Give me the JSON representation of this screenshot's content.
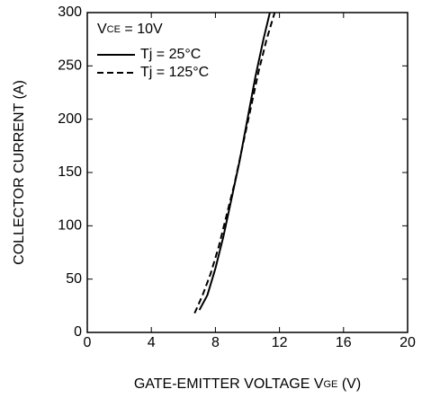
{
  "chart_data": {
    "type": "line",
    "x_label": [
      "GATE-EMITTER VOLTAGE  V",
      "GE",
      " (V)"
    ],
    "y_label": "COLLECTOR CURRENT (A)",
    "annotation": [
      "V",
      "CE",
      " = 10V"
    ],
    "xlim": [
      0,
      20
    ],
    "xticks": [
      0,
      4,
      8,
      12,
      16,
      20
    ],
    "ylim": [
      0,
      300
    ],
    "yticks": [
      0,
      50,
      100,
      150,
      200,
      250,
      300
    ],
    "grid": false,
    "series": [
      {
        "name": "Tj = 25°C",
        "color": "#000000",
        "dash": false,
        "x": [
          7.0,
          7.5,
          8.0,
          8.5,
          9.0,
          9.5,
          10.0,
          10.5,
          11.0,
          11.4
        ],
        "values": [
          21,
          35,
          60,
          90,
          125,
          160,
          200,
          240,
          275,
          300
        ]
      },
      {
        "name": "Tj = 125°C",
        "color": "#000000",
        "dash": true,
        "x": [
          6.7,
          7.2,
          7.7,
          8.2,
          8.7,
          9.2,
          9.7,
          10.2,
          10.7,
          11.2,
          11.7
        ],
        "values": [
          18,
          35,
          55,
          80,
          110,
          140,
          175,
          210,
          245,
          275,
          300
        ]
      }
    ]
  }
}
